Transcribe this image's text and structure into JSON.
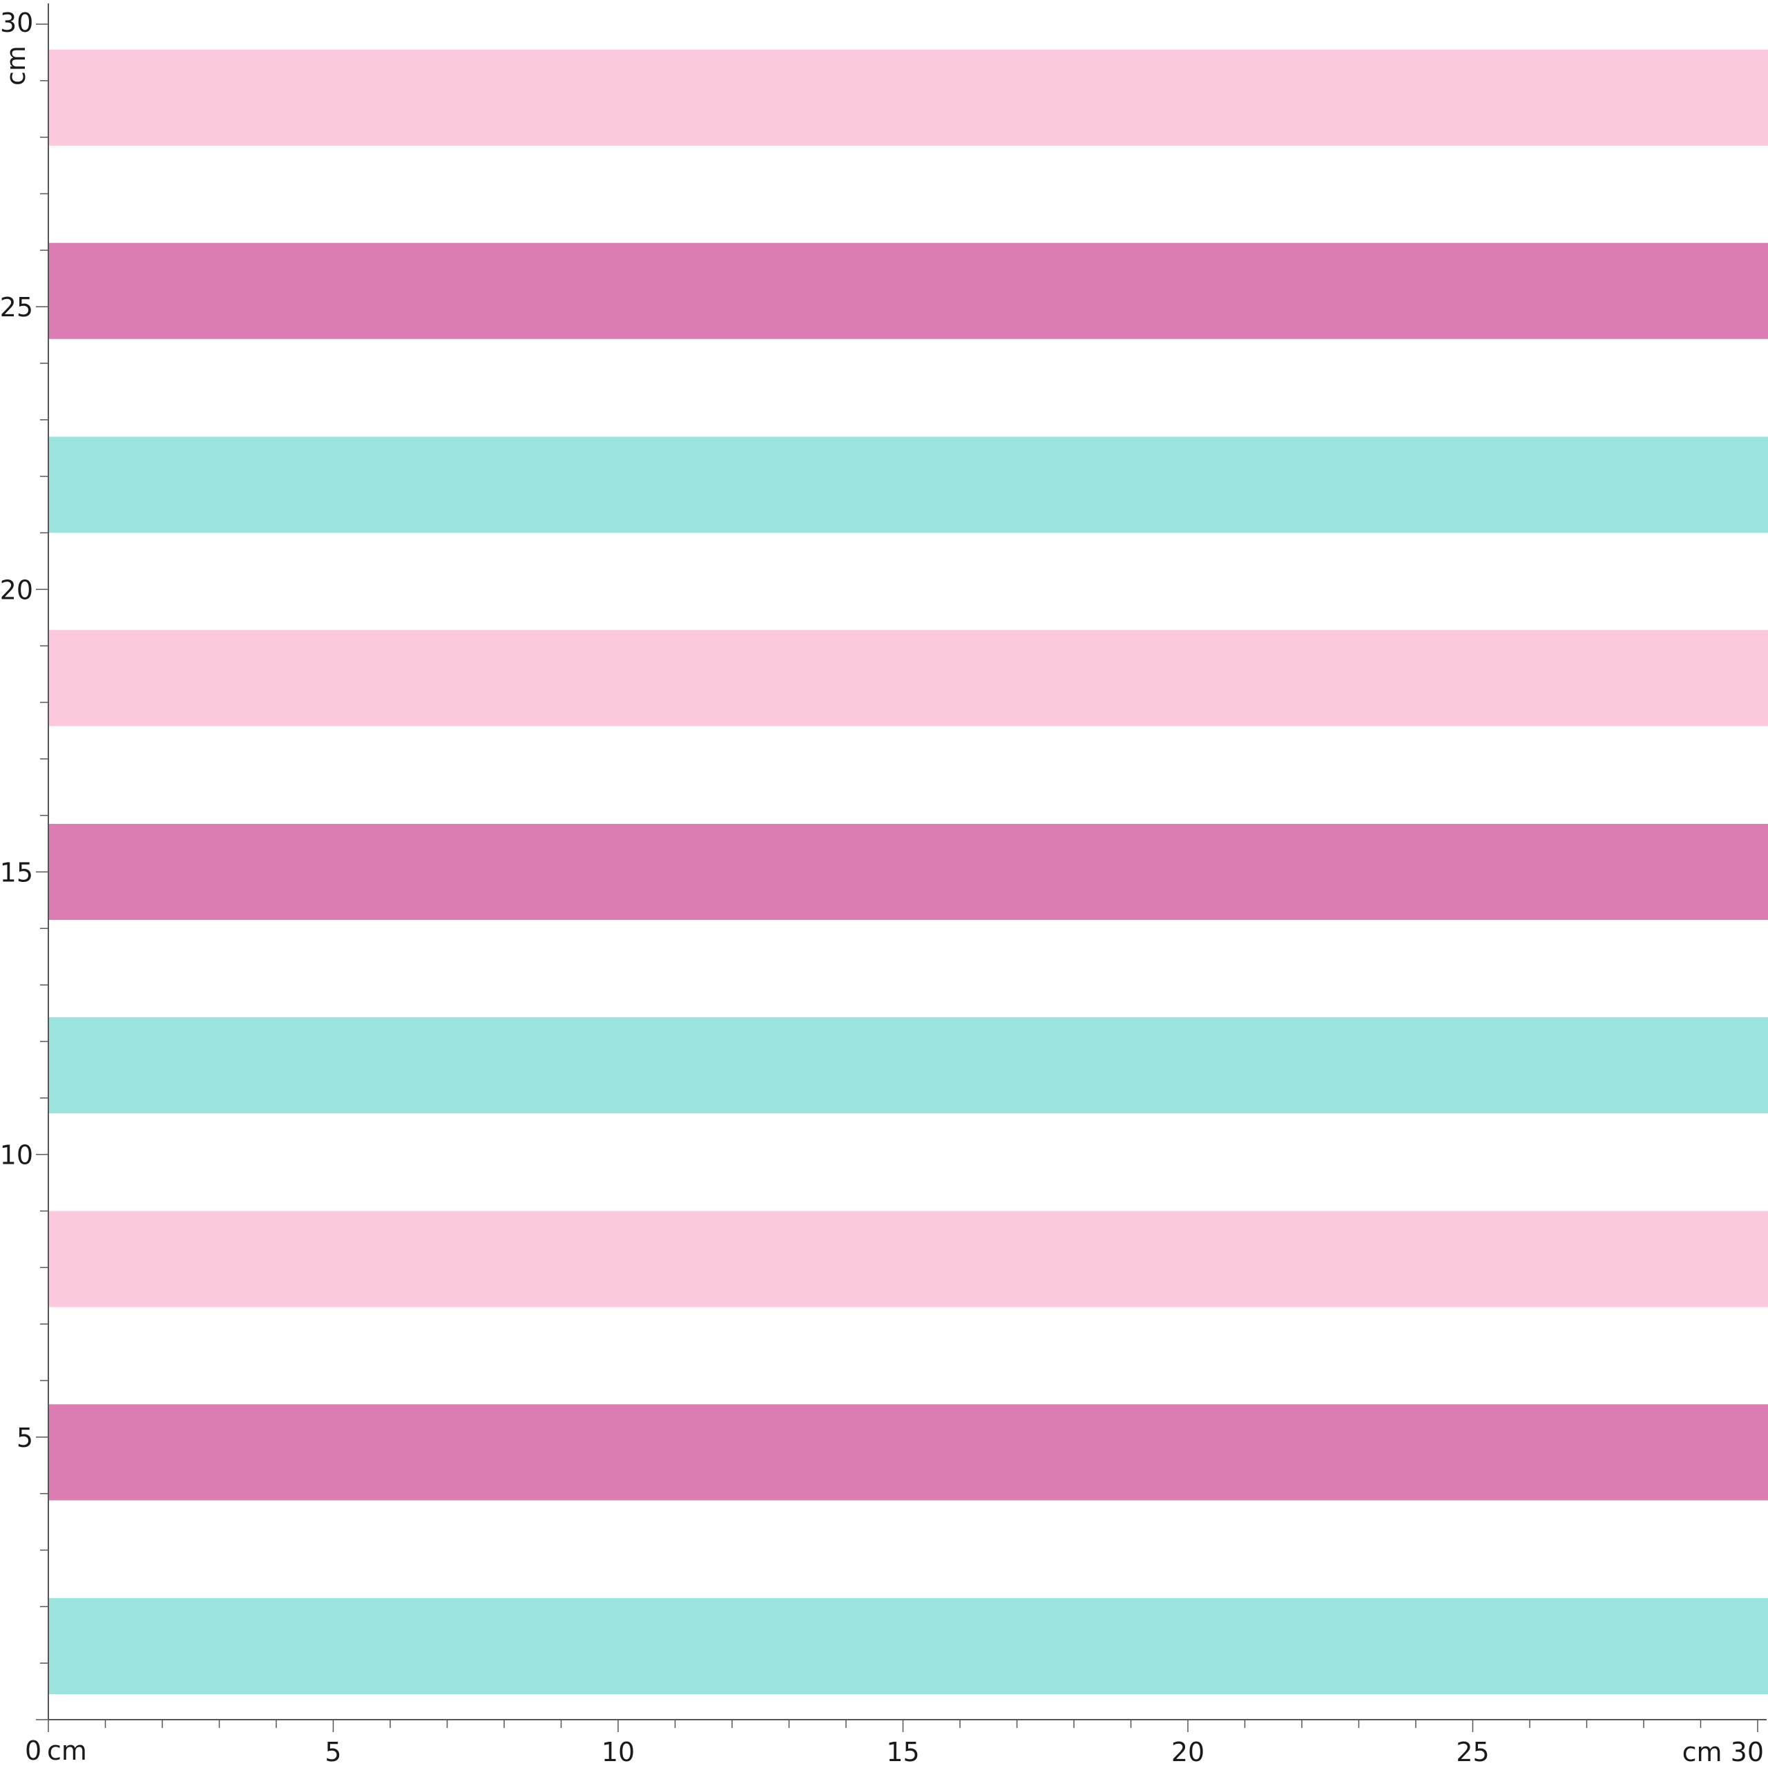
{
  "ruler": {
    "x_axis": {
      "min": 0,
      "max": 30,
      "origin_label": "0",
      "labels": [
        5,
        10,
        15,
        20,
        25
      ],
      "unit_left": "cm",
      "end_label": "cm 30"
    },
    "y_axis": {
      "min": 0,
      "max": 30,
      "labels": [
        5,
        10,
        15,
        20,
        25
      ],
      "top_label": "30",
      "unit": "cm"
    }
  },
  "stripes": [
    {
      "y0": 0.45,
      "y1": 2.15,
      "color": "#9ae4dd"
    },
    {
      "y0": 3.88,
      "y1": 5.58,
      "color": "#db7db3"
    },
    {
      "y0": 7.3,
      "y1": 9.0,
      "color": "#fbc8de"
    },
    {
      "y0": 10.73,
      "y1": 12.43,
      "color": "#9ae4dd"
    },
    {
      "y0": 14.15,
      "y1": 15.85,
      "color": "#db7db3"
    },
    {
      "y0": 17.58,
      "y1": 19.28,
      "color": "#fbc8de"
    },
    {
      "y0": 21.0,
      "y1": 22.7,
      "color": "#9ae4dd"
    },
    {
      "y0": 24.43,
      "y1": 26.13,
      "color": "#db7db3"
    },
    {
      "y0": 27.85,
      "y1": 29.55,
      "color": "#fbc8de"
    }
  ]
}
